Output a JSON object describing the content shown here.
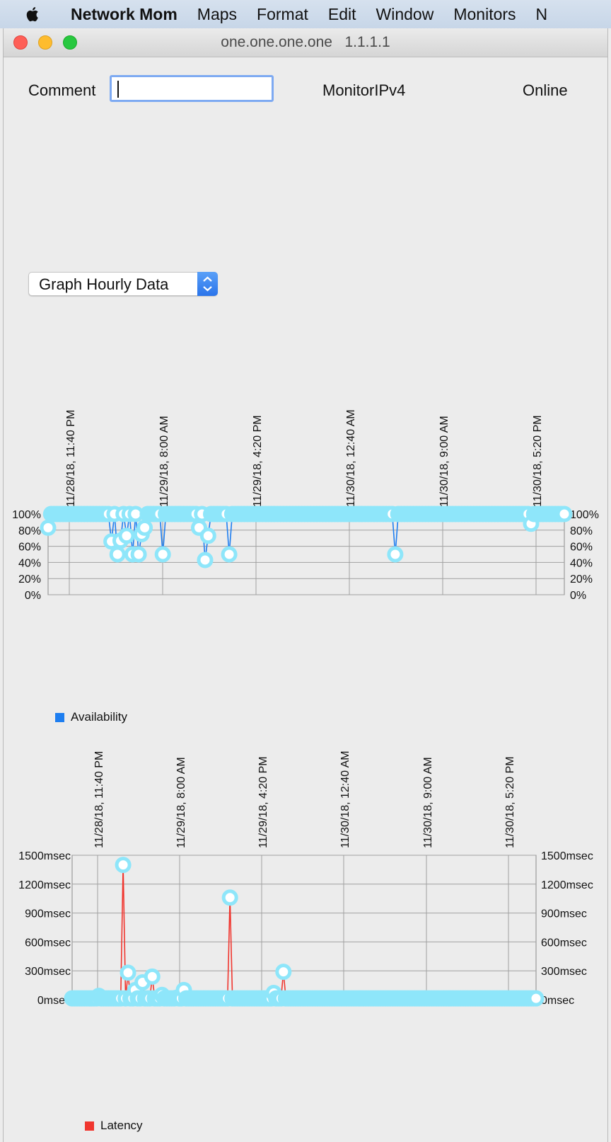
{
  "menubar": {
    "app_name": "Network Mom",
    "items": [
      "Maps",
      "Format",
      "Edit",
      "Window",
      "Monitors",
      "N"
    ]
  },
  "window": {
    "title": "one.one.one.one   1.1.1.1"
  },
  "form": {
    "comment_label": "Comment",
    "comment_value": "",
    "monitor_type": "MonitorIPv4",
    "status": "Online"
  },
  "graph_select": {
    "selected": "Graph Hourly Data"
  },
  "colors": {
    "availability": "#1e7ef0",
    "latency": "#f0362f",
    "marker": "#8ee6fa"
  },
  "chart_data": [
    {
      "type": "line",
      "series": [
        {
          "name": "Availability",
          "values": [
            83,
            100,
            100,
            100,
            100,
            100,
            100,
            100,
            100,
            100,
            100,
            100,
            100,
            100,
            100,
            100,
            100,
            100,
            100,
            100,
            100,
            66,
            100,
            50,
            67,
            100,
            73,
            100,
            50,
            100,
            50,
            75,
            83,
            100,
            100,
            100,
            100,
            100,
            50,
            100,
            100,
            100,
            100,
            100,
            100,
            100,
            100,
            100,
            100,
            100,
            83,
            100,
            43,
            73,
            100,
            100,
            100,
            100,
            100,
            100,
            50,
            100,
            100,
            100,
            100,
            100,
            100,
            100,
            100,
            100,
            100,
            100,
            100,
            100,
            100,
            100,
            100,
            100,
            100,
            100,
            100,
            100,
            100,
            100,
            100,
            100,
            100,
            100,
            100,
            100,
            100,
            100,
            100,
            100,
            100,
            100,
            100,
            100,
            100,
            100,
            100,
            100,
            100,
            100,
            100,
            100,
            100,
            100,
            100,
            100,
            100,
            100,
            100,
            100,
            100,
            50,
            100,
            100,
            100,
            100,
            100,
            100,
            100,
            100,
            100,
            100,
            100,
            100,
            100,
            100,
            100,
            100,
            100,
            100,
            100,
            100,
            100,
            100,
            100,
            100,
            100,
            100,
            100,
            100,
            100,
            100,
            100,
            100,
            100,
            100,
            100,
            100,
            100,
            100,
            100,
            100,
            100,
            100,
            100,
            100,
            88,
            100,
            100,
            100,
            100,
            100,
            100,
            100,
            100,
            100,
            100,
            100
          ]
        }
      ],
      "x_tick_labels": [
        "11/28/18, 11:40 PM",
        "11/29/18, 8:00 AM",
        "11/29/18, 4:20 PM",
        "11/30/18, 12:40 AM",
        "11/30/18, 9:00 AM",
        "11/30/18, 5:20 PM"
      ],
      "y_tick_labels": [
        "0%",
        "20%",
        "40%",
        "60%",
        "80%",
        "100%"
      ],
      "ylim": [
        0,
        100
      ],
      "grid": true,
      "legend": "bottom-left"
    },
    {
      "type": "line",
      "series": [
        {
          "name": "Latency",
          "values": [
            14,
            14,
            14,
            14,
            14,
            14,
            14,
            14,
            14,
            14,
            14,
            40,
            14,
            14,
            14,
            14,
            14,
            14,
            14,
            14,
            14,
            1400,
            14,
            280,
            14,
            14,
            100,
            14,
            14,
            180,
            14,
            14,
            14,
            240,
            14,
            14,
            14,
            50,
            14,
            14,
            14,
            14,
            14,
            20,
            14,
            14,
            100,
            14,
            14,
            14,
            14,
            14,
            14,
            14,
            14,
            14,
            14,
            14,
            14,
            14,
            14,
            14,
            14,
            14,
            14,
            1060,
            14,
            14,
            14,
            14,
            14,
            14,
            14,
            14,
            14,
            14,
            14,
            14,
            14,
            14,
            14,
            14,
            14,
            70,
            14,
            14,
            14,
            290,
            14,
            14,
            14,
            14,
            14,
            14,
            14,
            14,
            14,
            14,
            14,
            14,
            14,
            14,
            14,
            14,
            14,
            14,
            14,
            14,
            14,
            14,
            14,
            14,
            14,
            14,
            14,
            14,
            14,
            14,
            14,
            14,
            14,
            14,
            14,
            14,
            14,
            14,
            14,
            14,
            14,
            14,
            14,
            14,
            14,
            14,
            14,
            14,
            14,
            14,
            14,
            14,
            14,
            14,
            14,
            14,
            14,
            14,
            14,
            14,
            14,
            14,
            14,
            14,
            14,
            14,
            14,
            14,
            14,
            14,
            14,
            14,
            14,
            14,
            14,
            14,
            14,
            14,
            14,
            14,
            14,
            14,
            14,
            14,
            14,
            14,
            14,
            14,
            14,
            14,
            14,
            14,
            14,
            14,
            14,
            14,
            14,
            14,
            14,
            14,
            14,
            14,
            14,
            14
          ]
        }
      ],
      "x_tick_labels": [
        "11/28/18, 11:40 PM",
        "11/29/18, 8:00 AM",
        "11/29/18, 4:20 PM",
        "11/30/18, 12:40 AM",
        "11/30/18, 9:00 AM",
        "11/30/18, 5:20 PM"
      ],
      "y_tick_labels": [
        "0msec",
        "300msec",
        "600msec",
        "900msec",
        "1200msec",
        "1500msec"
      ],
      "ylim": [
        0,
        1500
      ],
      "grid": true,
      "legend": "bottom-left"
    }
  ]
}
